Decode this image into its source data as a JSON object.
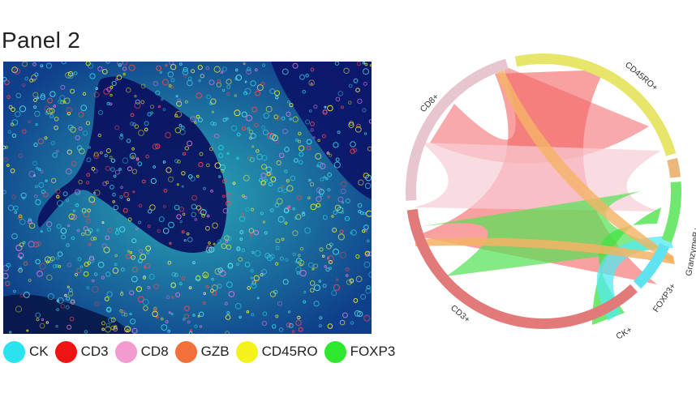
{
  "title": "Panel 2",
  "legend": [
    {
      "label": "CK",
      "color": "#29e3ee"
    },
    {
      "label": "CD3",
      "color": "#ef1414"
    },
    {
      "label": "CD8",
      "color": "#f39ad0"
    },
    {
      "label": "GZB",
      "color": "#f2703a"
    },
    {
      "label": "CD45RO",
      "color": "#f4f21a"
    },
    {
      "label": "FOXP3",
      "color": "#2ee82e"
    }
  ],
  "micrograph": {
    "alt": "multiplex immunofluorescence tissue image"
  },
  "chord": {
    "groups": [
      {
        "label": "CD45RO+",
        "color": "#e7e66a"
      },
      {
        "label": "GranzymeB+",
        "color": "#eab87a"
      },
      {
        "label": "FOXP3+",
        "color": "#6ee86e"
      },
      {
        "label": "CK+",
        "color": "#5fe3ee"
      },
      {
        "label": "CD3+",
        "color": "#e37a7a"
      },
      {
        "label": "CD8+",
        "color": "#e8c6cf"
      }
    ]
  }
}
